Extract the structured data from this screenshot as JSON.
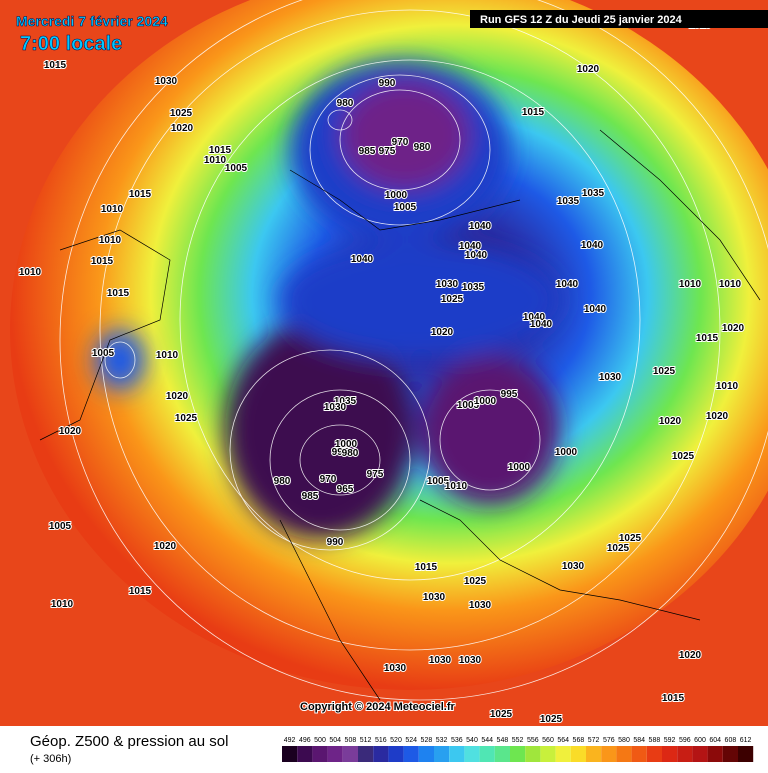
{
  "header": {
    "date": "Mercredi 7 février 2024",
    "time": "7:00 locale",
    "run": "Run GFS 12 Z du Jeudi 25 janvier 2024"
  },
  "copyright": "Copyright © 2024 Meteociel.fr",
  "footer": {
    "title": "Géop. Z500 & pression au sol",
    "lead": "(+ 306h)"
  },
  "scale": {
    "ticks": [
      492,
      496,
      500,
      504,
      508,
      512,
      516,
      520,
      524,
      528,
      532,
      536,
      540,
      544,
      548,
      552,
      556,
      560,
      564,
      568,
      572,
      576,
      580,
      584,
      588,
      592,
      596,
      600,
      604,
      608,
      612
    ],
    "colors": [
      "#1a0020",
      "#3c0a50",
      "#5a1670",
      "#6e2488",
      "#7a3c9a",
      "#3a2a7a",
      "#2a2aa0",
      "#1e3cc8",
      "#1e5ae6",
      "#1e82f0",
      "#28a0f0",
      "#3cc8f0",
      "#50e0e0",
      "#50e6b4",
      "#5ae68c",
      "#6ee650",
      "#a0e63c",
      "#c8f03c",
      "#f0f03c",
      "#fadc28",
      "#fab41e",
      "#fa9619",
      "#f57814",
      "#f05a14",
      "#e83c14",
      "#dc2814",
      "#c81e14",
      "#b41414",
      "#8c0a0a",
      "#640505",
      "#3c0000"
    ]
  },
  "isobars": [
    1015,
    1030,
    1025,
    1020,
    1015,
    1010,
    1005,
    1015,
    1010,
    1010,
    1015,
    1010,
    1015,
    1005,
    1010,
    1020,
    1025,
    1020,
    1005,
    1020,
    1015,
    1010,
    990,
    980,
    970,
    980,
    985,
    975,
    1000,
    1005,
    1015,
    1020,
    1035,
    1035,
    1040,
    1040,
    1040,
    1040,
    1040,
    1030,
    1035,
    1025,
    1040,
    1040,
    1040,
    1040,
    1020,
    1010,
    1010,
    1020,
    1015,
    1030,
    1025,
    1010,
    1020,
    1020,
    1025,
    1035,
    1030,
    1005,
    1000,
    995,
    1000,
    995,
    980,
    975,
    980,
    970,
    965,
    985,
    1005,
    1010,
    1000,
    1000,
    990,
    1015,
    1025,
    1030,
    1030,
    1030,
    1025,
    1025,
    1030,
    1030,
    1030,
    1020,
    1015,
    1025,
    1025,
    1010
  ]
}
